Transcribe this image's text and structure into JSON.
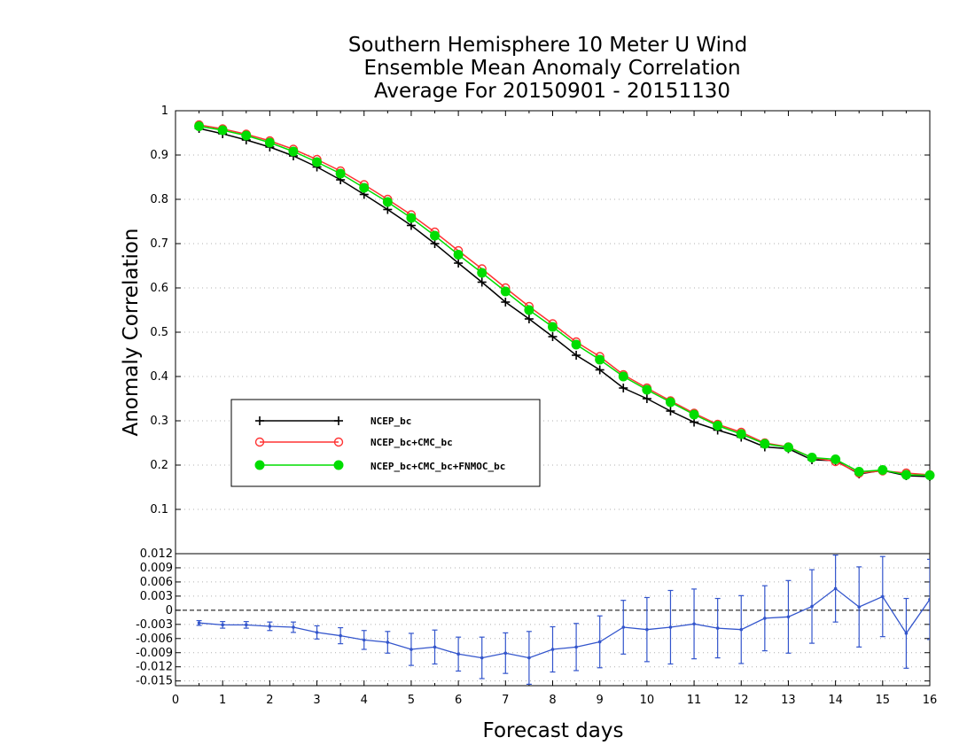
{
  "chart_data": {
    "title_lines": [
      "Southern Hemisphere 10 Meter U Wind",
      "Ensemble Mean Anomaly Correlation",
      "Average For 20150901 - 20151130"
    ],
    "xlabel": "Forecast days",
    "ylabel": "Anomaly Correlation",
    "x_ticks": [
      "0",
      "1",
      "2",
      "3",
      "4",
      "5",
      "6",
      "7",
      "8",
      "9",
      "10",
      "11",
      "12",
      "13",
      "14",
      "15",
      "16"
    ],
    "xlim": [
      0,
      16
    ],
    "main": {
      "type": "line",
      "ylim": [
        0,
        1
      ],
      "y_ticks": [
        "0.1",
        "0.2",
        "0.3",
        "0.4",
        "0.5",
        "0.6",
        "0.7",
        "0.8",
        "0.9",
        "1"
      ],
      "grid": true,
      "legend_position": "lower-left",
      "x": [
        0.5,
        1,
        1.5,
        2,
        2.5,
        3,
        3.5,
        4,
        4.5,
        5,
        5.5,
        6,
        6.5,
        7,
        7.5,
        8,
        8.5,
        9,
        9.5,
        10,
        10.5,
        11,
        11.5,
        12,
        12.5,
        13,
        13.5,
        14,
        14.5,
        15,
        15.5,
        16
      ],
      "series": [
        {
          "name": "NCEP_bc",
          "color": "#000000",
          "marker": "plus",
          "values": [
            0.96,
            0.948,
            0.934,
            0.918,
            0.898,
            0.873,
            0.844,
            0.811,
            0.777,
            0.741,
            0.7,
            0.656,
            0.613,
            0.568,
            0.53,
            0.49,
            0.448,
            0.415,
            0.374,
            0.35,
            0.322,
            0.297,
            0.279,
            0.263,
            0.241,
            0.237,
            0.212,
            0.21,
            0.18,
            0.188,
            0.176,
            0.174
          ]
        },
        {
          "name": "NCEP_bc+CMC_bc",
          "color": "#ff3333",
          "marker": "open-circle",
          "values": [
            0.968,
            0.959,
            0.947,
            0.932,
            0.913,
            0.89,
            0.864,
            0.833,
            0.8,
            0.765,
            0.726,
            0.684,
            0.643,
            0.6,
            0.558,
            0.519,
            0.478,
            0.445,
            0.404,
            0.374,
            0.345,
            0.317,
            0.292,
            0.274,
            0.25,
            0.241,
            0.217,
            0.208,
            0.182,
            0.187,
            0.182,
            0.178
          ]
        },
        {
          "name": "NCEP_bc+CMC_bc+FNMOC_bc",
          "color": "#00dd00",
          "marker": "filled-circle",
          "values": [
            0.965,
            0.956,
            0.944,
            0.928,
            0.908,
            0.884,
            0.858,
            0.826,
            0.794,
            0.758,
            0.718,
            0.675,
            0.634,
            0.592,
            0.55,
            0.512,
            0.472,
            0.438,
            0.4,
            0.37,
            0.342,
            0.314,
            0.289,
            0.27,
            0.248,
            0.24,
            0.217,
            0.213,
            0.185,
            0.189,
            0.178,
            0.177
          ]
        }
      ]
    },
    "difference": {
      "type": "line-errorbar",
      "ylim": [
        -0.016,
        0.012
      ],
      "y_ticks": [
        "0.012",
        "0.009",
        "0.006",
        "0.003",
        "0",
        "-0.003",
        "-0.006",
        "-0.009",
        "-0.012",
        "-0.015"
      ],
      "grid": true,
      "color": "#3355cc",
      "x": [
        0.5,
        1,
        1.5,
        2,
        2.5,
        3,
        3.5,
        4,
        4.5,
        5,
        5.5,
        6,
        6.5,
        7,
        7.5,
        8,
        8.5,
        9,
        9.5,
        10,
        10.5,
        11,
        11.5,
        12,
        12.5,
        13,
        13.5,
        14,
        14.5,
        15,
        15.5,
        16
      ],
      "values": [
        -0.0027,
        -0.0031,
        -0.0031,
        -0.0034,
        -0.0036,
        -0.0047,
        -0.0054,
        -0.0063,
        -0.0068,
        -0.0083,
        -0.0078,
        -0.0093,
        -0.0101,
        -0.0091,
        -0.0101,
        -0.0083,
        -0.0078,
        -0.0067,
        -0.0036,
        -0.0041,
        -0.0036,
        -0.0029,
        -0.0038,
        -0.0041,
        -0.0017,
        -0.0014,
        0.0008,
        0.0046,
        0.0007,
        0.0029,
        -0.0049,
        0.0023
      ],
      "errors": [
        0.0005,
        0.0007,
        0.0007,
        0.0009,
        0.0011,
        0.0014,
        0.0017,
        0.002,
        0.0023,
        0.0034,
        0.0036,
        0.0036,
        0.0044,
        0.0043,
        0.0056,
        0.0048,
        0.005,
        0.0055,
        0.0057,
        0.0068,
        0.0078,
        0.0074,
        0.0063,
        0.0072,
        0.0069,
        0.0077,
        0.0078,
        0.0071,
        0.0085,
        0.0085,
        0.0074,
        0.0085
      ]
    }
  }
}
